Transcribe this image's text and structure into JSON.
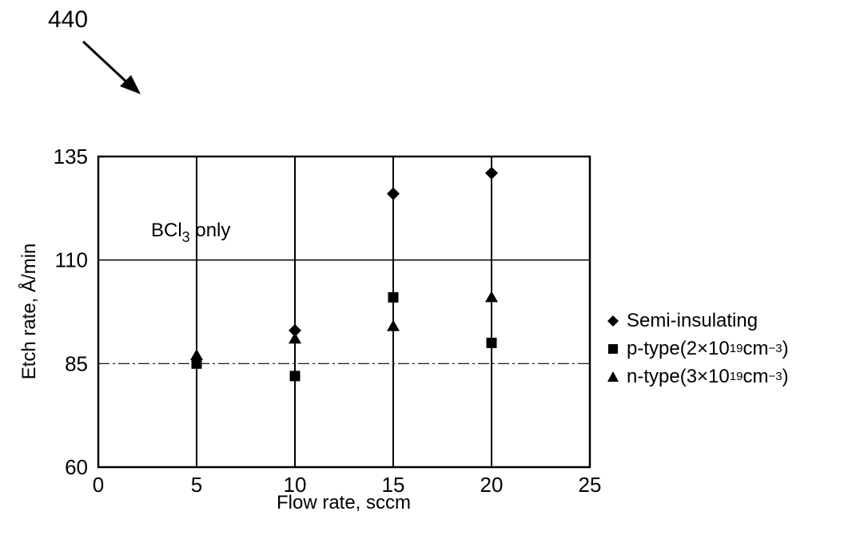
{
  "figure_ref": "440",
  "chart_data": {
    "type": "scatter",
    "title": "",
    "xlabel": "Flow rate, sccm",
    "ylabel": "Etch rate, Å/min",
    "xlim": [
      0,
      25
    ],
    "ylim": [
      60,
      135
    ],
    "xticks": [
      0,
      5,
      10,
      15,
      20,
      25
    ],
    "yticks": [
      60,
      85,
      110,
      135
    ],
    "grid": "vertical at 5,10,15,20 (solid); horizontal at 110 (solid) and 85 (dashed)",
    "legend_position": "right",
    "annotation": {
      "main": "BCl",
      "sub": "3",
      "rest": " only"
    },
    "series": [
      {
        "name": "Semi-insulating",
        "marker": "diamond",
        "name_extra": {
          "pre": "",
          "sup": "",
          "mid": "",
          "sup2": "",
          "post": ""
        },
        "points": [
          [
            10,
            93
          ],
          [
            15,
            126
          ],
          [
            20,
            131
          ]
        ]
      },
      {
        "name": "p-type",
        "marker": "square",
        "name_extra": {
          "pre": " (2×10",
          "sup": "19",
          "mid": " cm",
          "sup2": "−3",
          "post": ")"
        },
        "points": [
          [
            5,
            85
          ],
          [
            10,
            82
          ],
          [
            15,
            101
          ],
          [
            20,
            90
          ]
        ]
      },
      {
        "name": "n-type",
        "marker": "triangle",
        "name_extra": {
          "pre": " (3×10",
          "sup": "19",
          "mid": " cm",
          "sup2": "−3",
          "post": ")"
        },
        "points": [
          [
            5,
            87
          ],
          [
            10,
            91
          ],
          [
            15,
            94
          ],
          [
            20,
            101
          ]
        ]
      }
    ]
  }
}
